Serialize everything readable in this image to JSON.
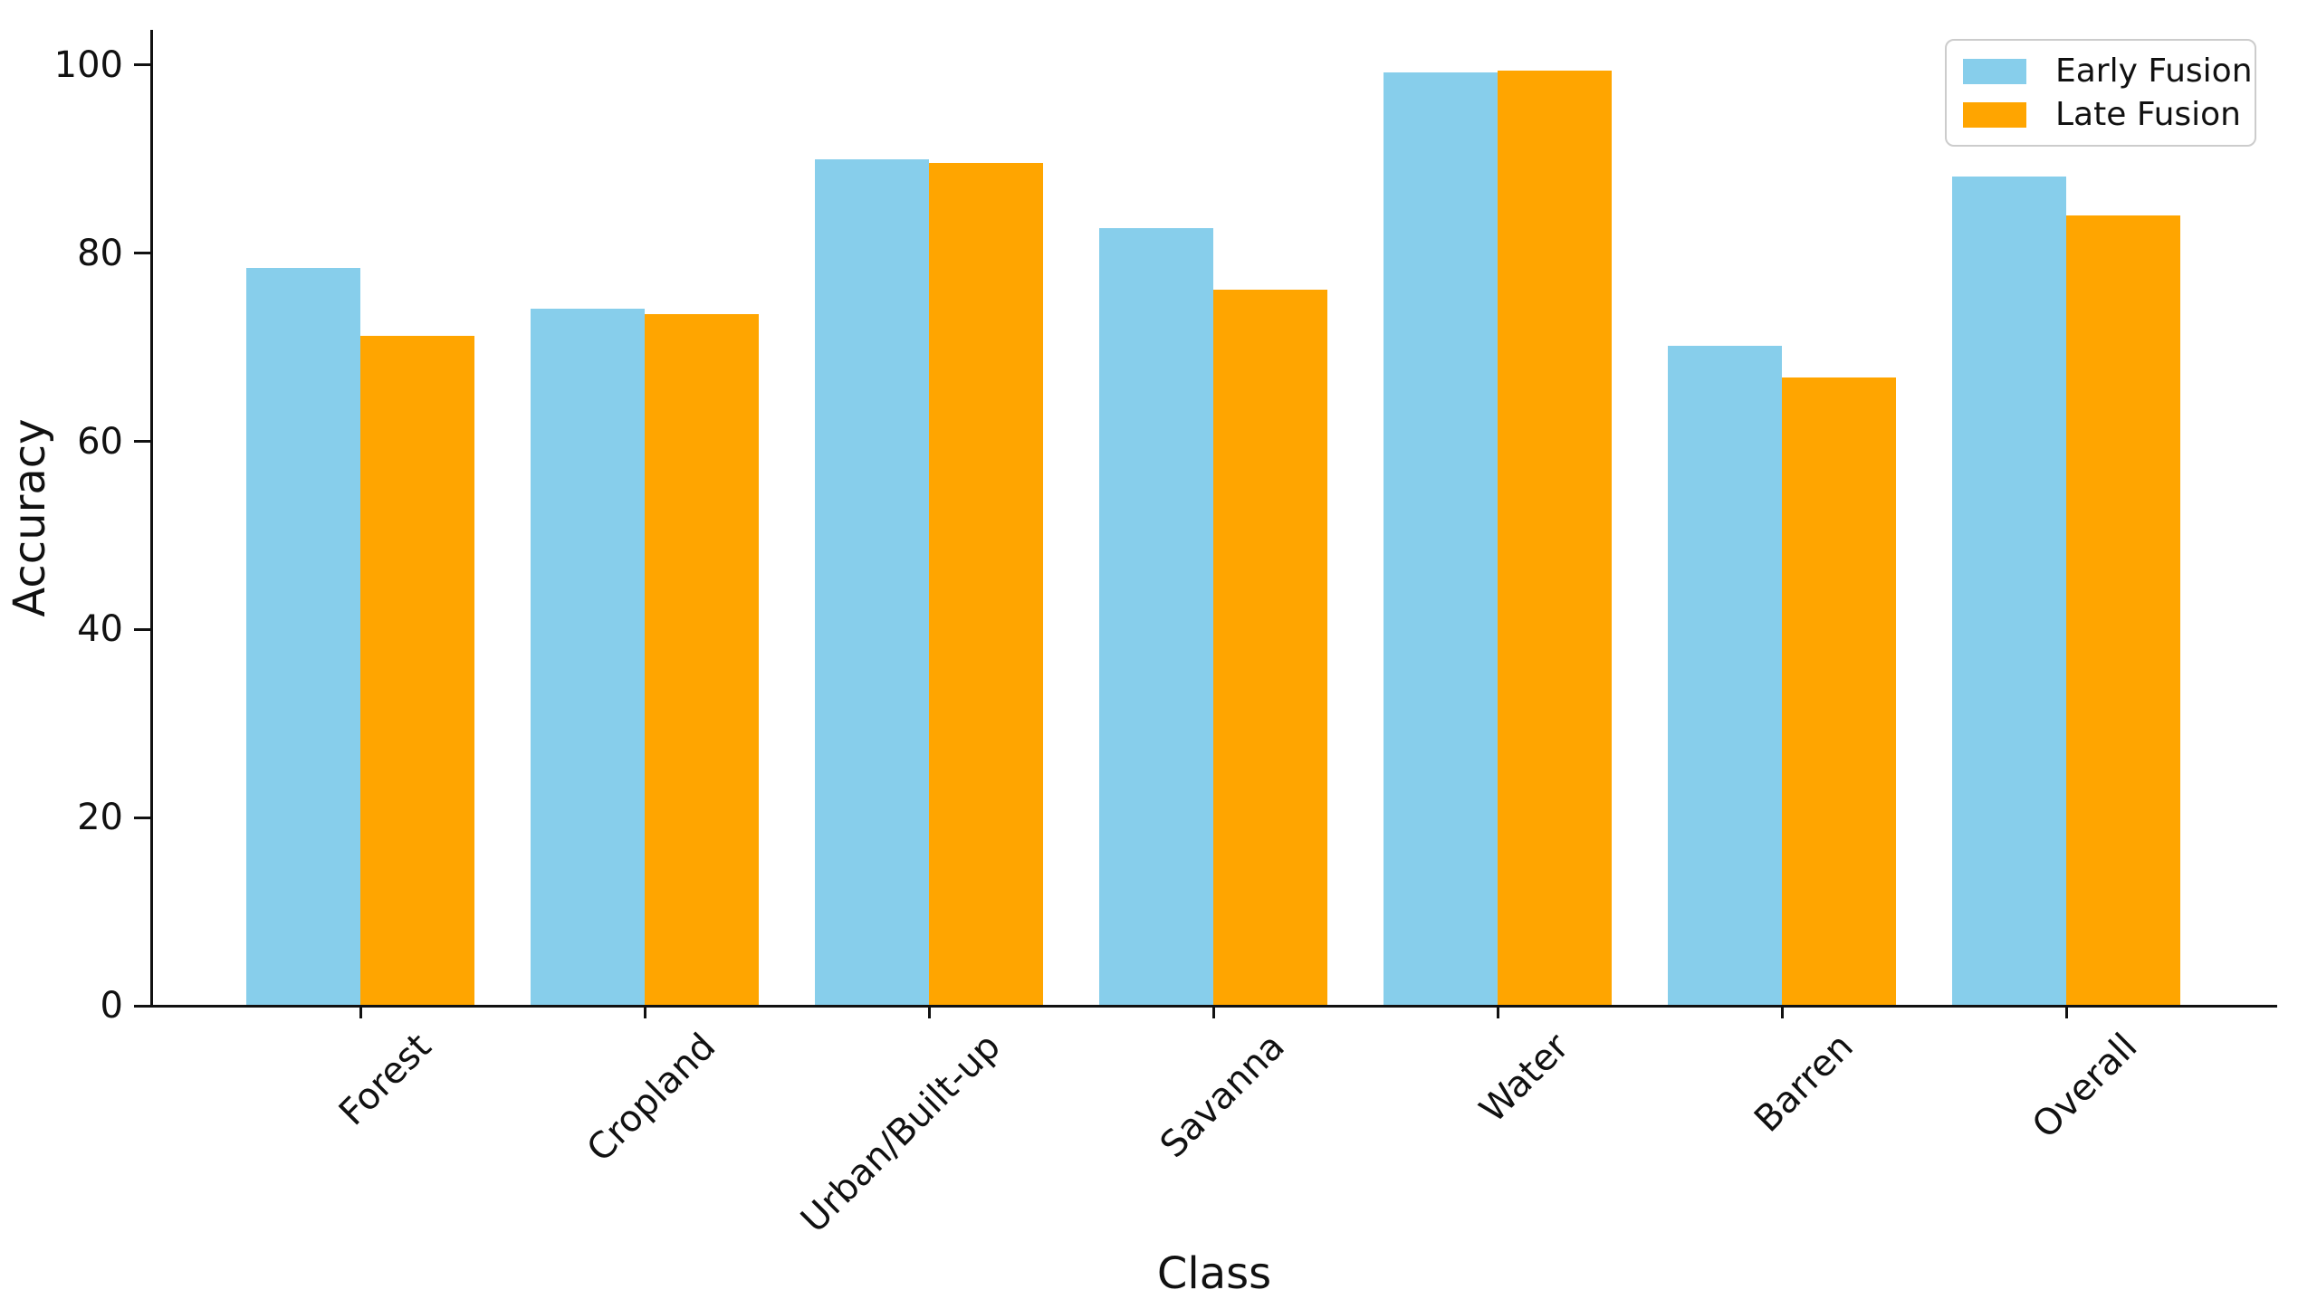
{
  "chart_data": {
    "type": "bar",
    "title": "",
    "xlabel": "Class",
    "ylabel": "Accuracy",
    "categories": [
      "Forest",
      "Cropland",
      "Urban/Built-up",
      "Savanna",
      "Water",
      "Barren",
      "Overall"
    ],
    "series": [
      {
        "name": "Early Fusion",
        "color": "#87CEEB",
        "values": [
          78.4,
          74.1,
          90.0,
          82.7,
          99.2,
          70.2,
          88.2
        ]
      },
      {
        "name": "Late Fusion",
        "color": "#FFA500",
        "values": [
          71.2,
          73.5,
          89.6,
          76.1,
          99.4,
          66.8,
          84.0
        ]
      }
    ],
    "ylim": [
      0,
      103.75
    ],
    "yticks": [
      0,
      20,
      40,
      60,
      80,
      100
    ],
    "grid": false,
    "legend": {
      "position": "upper right"
    },
    "xtick_rotation": 45
  },
  "colors": {
    "axis": "#111111",
    "text": "#111111",
    "legend_border": "#cccccc",
    "background": "#ffffff"
  }
}
